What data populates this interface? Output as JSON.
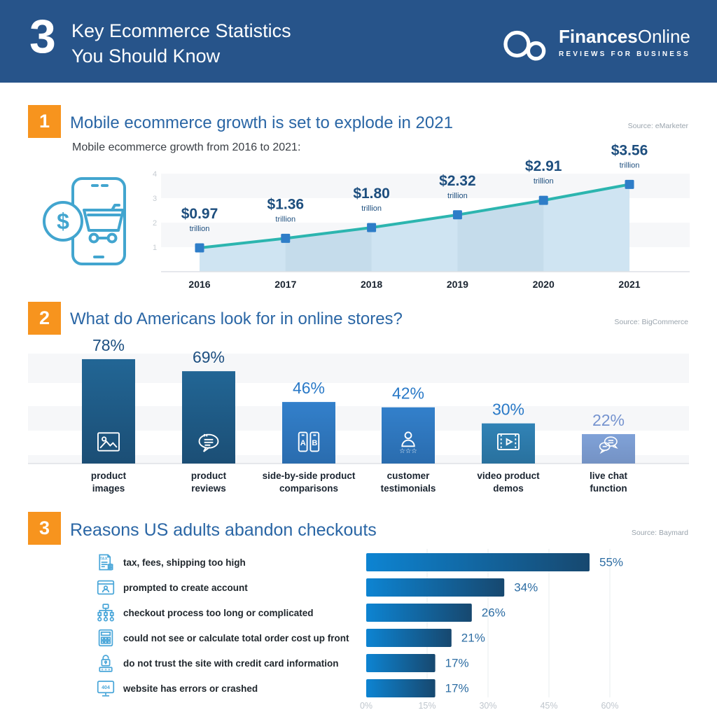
{
  "header": {
    "count": "3",
    "title_line1": "Key Ecommerce Statistics",
    "title_line2": "You Should Know",
    "brand_bold": "Finances",
    "brand_light": "Online",
    "brand_tagline": "REVIEWS FOR BUSINESS"
  },
  "sections": {
    "one": {
      "number": "1",
      "title": "Mobile ecommerce growth is set to explode in 2021",
      "source": "Source: eMarketer",
      "subtitle": "Mobile ecommerce growth from 2016 to 2021:"
    },
    "two": {
      "number": "2",
      "title": "What do Americans look for in online stores?",
      "source": "Source: BigCommerce"
    },
    "three": {
      "number": "3",
      "title": "Reasons US adults abandon checkouts",
      "source": "Source: Baymard"
    }
  },
  "chart_data": [
    {
      "id": "mobile-ecommerce-growth",
      "type": "line",
      "title": "Mobile ecommerce growth from 2016 to 2021:",
      "x": [
        "2016",
        "2017",
        "2018",
        "2019",
        "2020",
        "2021"
      ],
      "values": [
        0.97,
        1.36,
        1.8,
        2.32,
        2.91,
        3.56
      ],
      "point_labels": [
        "$0.97",
        "$1.36",
        "$1.80",
        "$2.32",
        "$2.91",
        "$3.56"
      ],
      "point_sublabel": "trillion",
      "yticks": [
        1,
        2,
        3,
        4
      ],
      "ylim": [
        0,
        4.4
      ],
      "grid": "horizontal-bands",
      "legend": "none",
      "colors": {
        "line": "#2CB5AF",
        "marker": "#2E7DC8",
        "area": "#CFE4F2",
        "label": "#1D4E7E",
        "ytick": "#C6CCD2",
        "xlabel": "#1A2430"
      }
    },
    {
      "id": "online-store-features",
      "type": "bar",
      "categories": [
        [
          "product",
          "images"
        ],
        [
          "product",
          "reviews"
        ],
        [
          "side-by-side product",
          "comparisons"
        ],
        [
          "customer",
          "testimonials"
        ],
        [
          "video product",
          "demos"
        ],
        [
          "live chat",
          "function"
        ]
      ],
      "values": [
        78,
        69,
        46,
        42,
        30,
        22
      ],
      "value_labels": [
        "78%",
        "69%",
        "46%",
        "42%",
        "30%",
        "22%"
      ],
      "icons": [
        "image-icon",
        "review-icon",
        "compare-icon",
        "testimonial-icon",
        "video-icon",
        "chat-icon"
      ],
      "bar_colors": [
        [
          "#226695",
          "#1B4E75"
        ],
        [
          "#226695",
          "#1B4E75"
        ],
        [
          "#3380CB",
          "#2A6CAE"
        ],
        [
          "#3380CB",
          "#2A6CAE"
        ],
        [
          "#3183B6",
          "#29719E"
        ],
        [
          "#80A2D8",
          "#7492C4"
        ]
      ],
      "label_colors": [
        "#1D4F80",
        "#1D4F80",
        "#2979C7",
        "#2979C7",
        "#2979C7",
        "#7593CF"
      ],
      "ylim": [
        0,
        100
      ],
      "legend": "none"
    },
    {
      "id": "checkout-abandonment-reasons",
      "type": "horizontal-bar",
      "categories": [
        "tax, fees, shipping too high",
        "prompted to create account",
        "checkout process too long or complicated",
        "could not see or calculate total order cost up front",
        "do not trust the site with credit card information",
        "website has errors or crashed"
      ],
      "icons": [
        "tax-icon",
        "account-icon",
        "process-icon",
        "calculator-icon",
        "lock-icon",
        "error-icon"
      ],
      "values": [
        55,
        34,
        26,
        21,
        17,
        17
      ],
      "value_labels": [
        "55%",
        "34%",
        "26%",
        "21%",
        "17%",
        "17%"
      ],
      "xticks": [
        "0%",
        "15%",
        "30%",
        "45%",
        "60%"
      ],
      "xtick_values": [
        0,
        15,
        30,
        45,
        60
      ],
      "xlim": [
        0,
        79
      ],
      "bar_gradient": [
        "#0D84D2",
        "#17486F"
      ],
      "value_label_color": "#2D6DA3",
      "category_color": "#21282E",
      "legend": "none"
    }
  ],
  "colors": {
    "header_bg": "#27548A",
    "badge_orange": "#F7941E",
    "heading_blue": "#2A66A5",
    "source_gray": "#9AA4AD",
    "stripe": "#F6F7F9",
    "baseline": "#DDE1E5",
    "outline_icon_blue": "#4BA7D9",
    "phone_icon_blue": "#42A5CF"
  }
}
